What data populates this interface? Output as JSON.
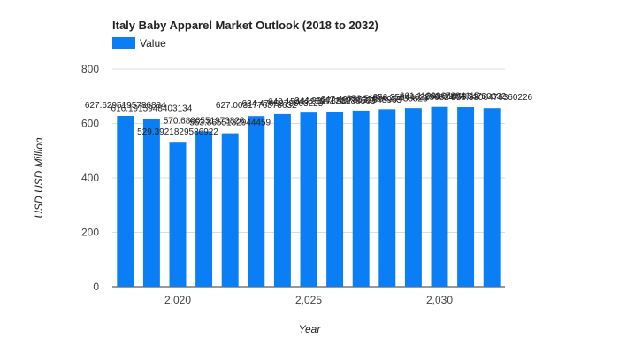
{
  "chart_data": {
    "type": "bar",
    "title": "Italy Baby Apparel Market Outlook (2018 to 2032)",
    "xlabel": "Year",
    "ylabel": "USD USD Million",
    "legend": {
      "position": "top-left",
      "entries": [
        "Value"
      ]
    },
    "color": "#0a7ff5",
    "ylim": [
      0,
      800
    ],
    "yticks": [
      0,
      200,
      400,
      600,
      800
    ],
    "xticks": [
      2020,
      2025,
      2030
    ],
    "xtick_labels": [
      "2,020",
      "2,025",
      "2,030"
    ],
    "grid": true,
    "series": [
      {
        "name": "Value",
        "x": [
          2018,
          2019,
          2020,
          2021,
          2022,
          2023,
          2024,
          2025,
          2026,
          2027,
          2028,
          2029,
          2030,
          2031,
          2032
        ],
        "values": [
          627.6,
          616.2,
          529.4,
          570.7,
          563.9,
          627.0,
          634.5,
          640.2,
          644.0,
          647.5,
          652.6,
          656.4,
          661.1,
          660.0,
          656.3
        ],
        "labels": [
          "627.6295195786884",
          "616.1915948403134",
          "529.3921829586922",
          "570.6886551973828",
          "563.8655132944459",
          "627.0031776878632",
          "634.4766878603225",
          "640.1544227314743",
          "644.0327853288563",
          "647.4978532848963",
          "652.5656629436823",
          "656.3534462296824",
          "661.1128867894117",
          "660.0186964750332",
          "656.3300476360226"
        ]
      }
    ]
  }
}
